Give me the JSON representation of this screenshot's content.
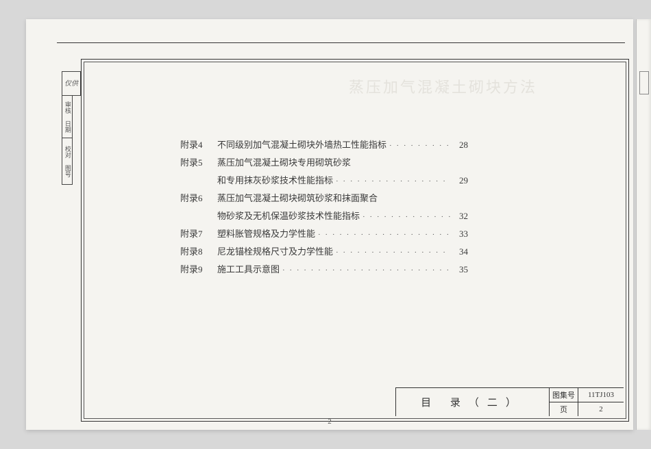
{
  "page": {
    "background": "#f5f4f0",
    "border_color": "#333333"
  },
  "ghost_text": "蒸压加气混凝土砌块方法",
  "margin": {
    "seal": "仅供",
    "box1": "审核 日期",
    "box2": "校对 图号"
  },
  "toc": {
    "entries": [
      {
        "label": "附录4",
        "title": "不同级别加气混凝土砌块外墙热工性能指标",
        "page": "28",
        "continued": false
      },
      {
        "label": "附录5",
        "title": "蒸压加气混凝土砌块专用砌筑砂浆",
        "page": "",
        "continued": false
      },
      {
        "label": "",
        "title": "和专用抹灰砂浆技术性能指标",
        "page": "29",
        "continued": true
      },
      {
        "label": "附录6",
        "title": "蒸压加气混凝土砌块砌筑砂浆和抹面聚合",
        "page": "",
        "continued": false
      },
      {
        "label": "",
        "title": "物砂浆及无机保温砂浆技术性能指标",
        "page": "32",
        "continued": true
      },
      {
        "label": "附录7",
        "title": "塑料胀管规格及力学性能",
        "page": "33",
        "continued": false
      },
      {
        "label": "附录8",
        "title": "尼龙锚栓规格尺寸及力学性能",
        "page": "34",
        "continued": false
      },
      {
        "label": "附录9",
        "title": "施工工具示意图",
        "page": "35",
        "continued": false
      }
    ]
  },
  "footer": {
    "title": "目 录（二）",
    "atlas_label": "图集号",
    "atlas_value": "11TJ103",
    "page_label": "页",
    "page_value": "2"
  },
  "page_number": "2"
}
